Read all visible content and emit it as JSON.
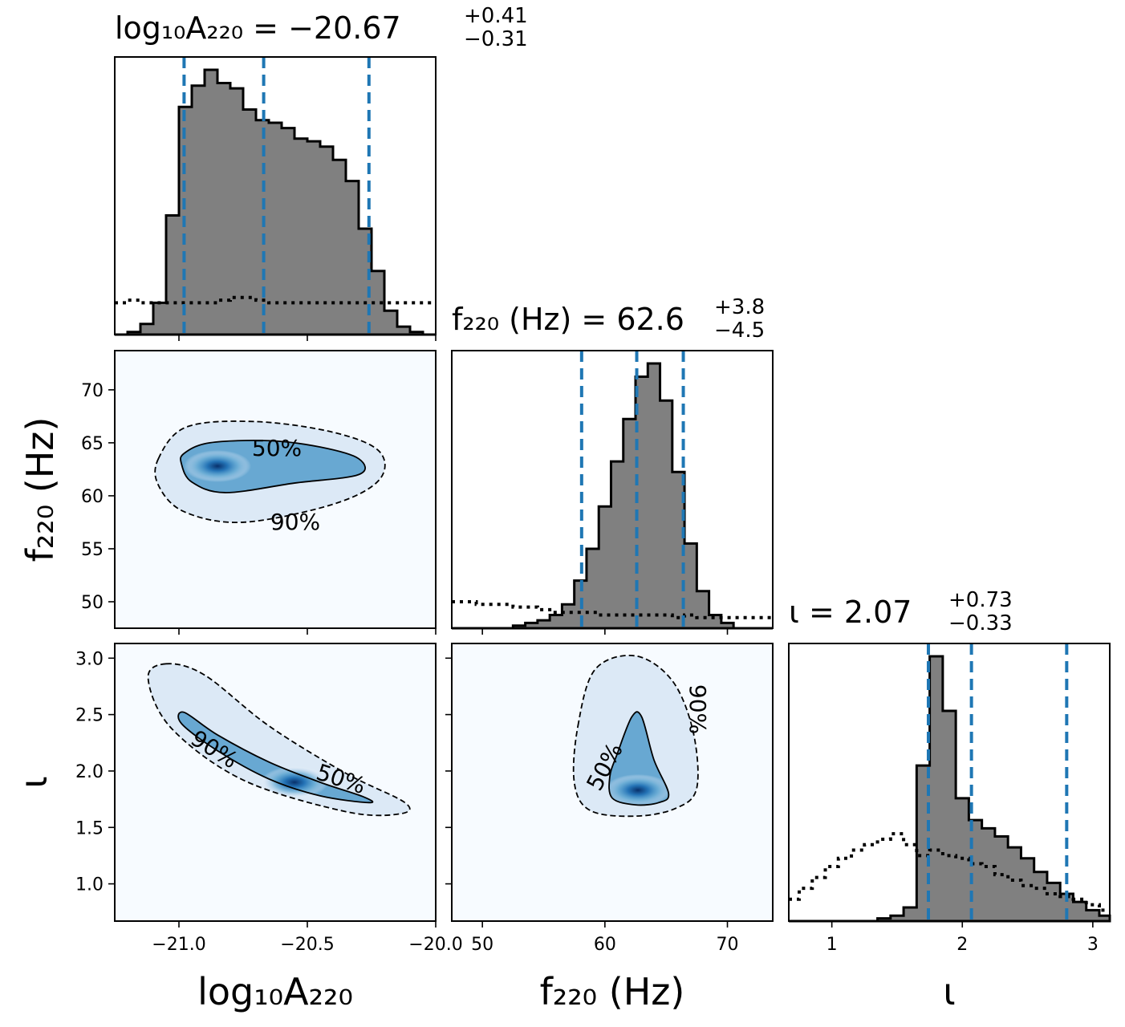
{
  "chart_data": [
    {
      "type": "histogram",
      "panel": "log10A220-marginal",
      "title": {
        "main": "log₁₀A₂₂₀ = −20.67",
        "plus": "+0.41",
        "minus": "−0.31"
      },
      "xlim": [
        -21.25,
        -20.0
      ],
      "quantiles": [
        -20.98,
        -20.67,
        -20.26
      ],
      "bin_edges": [
        -21.25,
        -21.2,
        -21.15,
        -21.1,
        -21.05,
        -21.0,
        -20.95,
        -20.9,
        -20.85,
        -20.8,
        -20.75,
        -20.7,
        -20.65,
        -20.6,
        -20.55,
        -20.5,
        -20.45,
        -20.4,
        -20.35,
        -20.3,
        -20.25,
        -20.2,
        -20.15,
        -20.1,
        -20.05,
        -20.0
      ],
      "posterior_density": [
        0.0,
        0.01,
        0.04,
        0.12,
        0.45,
        0.86,
        0.94,
        1.0,
        0.95,
        0.93,
        0.85,
        0.81,
        0.8,
        0.78,
        0.74,
        0.73,
        0.71,
        0.66,
        0.58,
        0.4,
        0.24,
        0.09,
        0.03,
        0.01,
        0.0
      ],
      "prior_density_dotted": [
        0.12,
        0.13,
        0.12,
        0.12,
        0.12,
        0.12,
        0.12,
        0.12,
        0.13,
        0.14,
        0.14,
        0.13,
        0.12,
        0.12,
        0.12,
        0.12,
        0.12,
        0.12,
        0.12,
        0.12,
        0.12,
        0.12,
        0.12,
        0.12,
        0.12
      ],
      "color": "#808080",
      "quantile_color": "#1f77b4"
    },
    {
      "type": "histogram",
      "panel": "f220-marginal",
      "title": {
        "main": "f₂₂₀ (Hz) = 62.6",
        "plus": "+3.8",
        "minus": "−4.5"
      },
      "xlim": [
        47.5,
        73.7
      ],
      "quantiles": [
        58.1,
        62.6,
        66.4
      ],
      "bin_edges": [
        47.5,
        48.5,
        49.5,
        50.5,
        51.5,
        52.5,
        53.5,
        54.5,
        55.5,
        56.5,
        57.5,
        58.5,
        59.5,
        60.5,
        61.5,
        62.5,
        63.5,
        64.5,
        65.5,
        66.5,
        67.5,
        68.5,
        69.5,
        70.5,
        71.5,
        72.5,
        73.7
      ],
      "posterior_density": [
        0.0,
        0.0,
        0.0,
        0.0,
        0.0,
        0.01,
        0.02,
        0.03,
        0.05,
        0.09,
        0.18,
        0.3,
        0.46,
        0.63,
        0.79,
        0.95,
        1.0,
        0.86,
        0.59,
        0.32,
        0.14,
        0.05,
        0.02,
        0.0,
        0.0,
        0.0
      ],
      "prior_density_dotted": [
        0.1,
        0.1,
        0.09,
        0.09,
        0.09,
        0.08,
        0.08,
        0.07,
        0.06,
        0.06,
        0.06,
        0.06,
        0.05,
        0.05,
        0.05,
        0.05,
        0.05,
        0.05,
        0.04,
        0.05,
        0.04,
        0.04,
        0.04,
        0.04,
        0.04,
        0.04
      ],
      "color": "#808080",
      "quantile_color": "#1f77b4"
    },
    {
      "type": "histogram",
      "panel": "iota-marginal",
      "title": {
        "main": "ι = 2.07",
        "plus": "+0.73",
        "minus": "−0.33"
      },
      "xlim": [
        0.67,
        3.13
      ],
      "quantiles": [
        1.74,
        2.07,
        2.8
      ],
      "bin_edges": [
        0.67,
        0.75,
        0.85,
        0.95,
        1.05,
        1.15,
        1.25,
        1.35,
        1.45,
        1.55,
        1.65,
        1.75,
        1.85,
        1.95,
        2.05,
        2.15,
        2.25,
        2.35,
        2.45,
        2.55,
        2.65,
        2.75,
        2.85,
        2.95,
        3.05,
        3.13
      ],
      "posterior_density": [
        0.0,
        0.0,
        0.0,
        0.0,
        0.0,
        0.0,
        0.0,
        0.01,
        0.02,
        0.05,
        0.57,
        0.97,
        0.77,
        0.45,
        0.37,
        0.34,
        0.31,
        0.27,
        0.23,
        0.18,
        0.14,
        0.1,
        0.07,
        0.04,
        0.02
      ],
      "prior_density_dotted": [
        0.08,
        0.12,
        0.16,
        0.2,
        0.23,
        0.26,
        0.28,
        0.3,
        0.32,
        0.28,
        0.24,
        0.26,
        0.24,
        0.23,
        0.21,
        0.2,
        0.17,
        0.15,
        0.13,
        0.12,
        0.1,
        0.09,
        0.08,
        0.06,
        0.04
      ],
      "color": "#808080",
      "quantile_color": "#1f77b4"
    },
    {
      "type": "heatmap",
      "panel": "log10A220-vs-f220",
      "xlim": [
        -21.25,
        -20.0
      ],
      "ylim": [
        47.5,
        73.7
      ],
      "density_peak": {
        "x": -20.85,
        "y": 62.8
      },
      "contour_labels": [
        "50%",
        "90%"
      ],
      "contour_50": [
        [
          -20.98,
          64.0
        ],
        [
          -20.88,
          65.0
        ],
        [
          -20.65,
          65.2
        ],
        [
          -20.45,
          64.6
        ],
        [
          -20.3,
          63.5
        ],
        [
          -20.3,
          62.0
        ],
        [
          -20.55,
          61.2
        ],
        [
          -20.82,
          60.3
        ],
        [
          -20.95,
          61.3
        ],
        [
          -20.99,
          63.0
        ]
      ],
      "contour_90": [
        [
          -21.08,
          63.5
        ],
        [
          -20.97,
          66.5
        ],
        [
          -20.7,
          67.0
        ],
        [
          -20.4,
          66.0
        ],
        [
          -20.22,
          64.2
        ],
        [
          -20.22,
          61.5
        ],
        [
          -20.4,
          59.2
        ],
        [
          -20.75,
          57.5
        ],
        [
          -20.98,
          58.5
        ],
        [
          -21.08,
          61.0
        ]
      ],
      "colormap": [
        "#f7fbff",
        "#c6dbef",
        "#6baed6",
        "#2171b5",
        "#08306b"
      ]
    },
    {
      "type": "heatmap",
      "panel": "log10A220-vs-iota",
      "xlim": [
        -21.25,
        -20.0
      ],
      "ylim": [
        0.67,
        3.13
      ],
      "density_peak": {
        "x": -20.55,
        "y": 1.9
      },
      "contour_labels": [
        "90%",
        "50%"
      ],
      "contour_50": [
        [
          -20.98,
          2.52
        ],
        [
          -20.85,
          2.32
        ],
        [
          -20.65,
          2.08
        ],
        [
          -20.45,
          1.9
        ],
        [
          -20.28,
          1.77
        ],
        [
          -20.26,
          1.72
        ],
        [
          -20.45,
          1.78
        ],
        [
          -20.65,
          1.93
        ],
        [
          -20.85,
          2.18
        ],
        [
          -20.99,
          2.42
        ]
      ],
      "contour_90": [
        [
          -21.05,
          2.95
        ],
        [
          -20.9,
          2.85
        ],
        [
          -20.65,
          2.4
        ],
        [
          -20.35,
          1.98
        ],
        [
          -20.12,
          1.72
        ],
        [
          -20.14,
          1.62
        ],
        [
          -20.35,
          1.64
        ],
        [
          -20.75,
          1.92
        ],
        [
          -21.03,
          2.38
        ],
        [
          -21.12,
          2.82
        ]
      ],
      "colormap": [
        "#f7fbff",
        "#c6dbef",
        "#6baed6",
        "#2171b5",
        "#08306b"
      ]
    },
    {
      "type": "heatmap",
      "panel": "f220-vs-iota",
      "xlim": [
        47.5,
        73.7
      ],
      "ylim": [
        0.67,
        3.13
      ],
      "density_peak": {
        "x": 62.7,
        "y": 1.83
      },
      "contour_labels": [
        "50%",
        "90%"
      ],
      "contour_50": [
        [
          61.0,
          2.15
        ],
        [
          62.2,
          2.48
        ],
        [
          63.0,
          2.48
        ],
        [
          64.0,
          2.1
        ],
        [
          65.2,
          1.8
        ],
        [
          64.4,
          1.72
        ],
        [
          62.5,
          1.7
        ],
        [
          60.6,
          1.76
        ],
        [
          60.4,
          1.95
        ]
      ],
      "contour_90": [
        [
          57.8,
          2.4
        ],
        [
          59.2,
          2.9
        ],
        [
          62.5,
          3.02
        ],
        [
          65.5,
          2.8
        ],
        [
          67.2,
          2.35
        ],
        [
          67.5,
          1.85
        ],
        [
          65.8,
          1.67
        ],
        [
          62.5,
          1.6
        ],
        [
          58.8,
          1.65
        ],
        [
          57.5,
          1.9
        ]
      ],
      "colormap": [
        "#f7fbff",
        "#c6dbef",
        "#6baed6",
        "#2171b5",
        "#08306b"
      ]
    }
  ],
  "axes": {
    "x_labels": {
      "A": "log₁₀A₂₂₀",
      "F": "f₂₂₀ (Hz)",
      "I": "ι"
    },
    "y_labels": {
      "F": "f₂₂₀ (Hz)",
      "I": "ι"
    },
    "ticks": {
      "A": [
        {
          "v": -21.0,
          "label": "−21.0"
        },
        {
          "v": -20.5,
          "label": "−20.5"
        },
        {
          "v": -20.0,
          "label": "−20.0"
        }
      ],
      "F": [
        {
          "v": 50,
          "label": "50"
        },
        {
          "v": 55,
          "label": "55"
        },
        {
          "v": 60,
          "label": "60"
        },
        {
          "v": 65,
          "label": "65"
        },
        {
          "v": 70,
          "label": "70"
        }
      ],
      "F_x": [
        {
          "v": 50,
          "label": "50"
        },
        {
          "v": 60,
          "label": "60"
        },
        {
          "v": 70,
          "label": "70"
        }
      ],
      "I_y": [
        {
          "v": 1.0,
          "label": "1.0"
        },
        {
          "v": 1.5,
          "label": "1.5"
        },
        {
          "v": 2.0,
          "label": "2.0"
        },
        {
          "v": 2.5,
          "label": "2.5"
        },
        {
          "v": 3.0,
          "label": "3.0"
        }
      ],
      "I_x": [
        {
          "v": 1,
          "label": "1"
        },
        {
          "v": 2,
          "label": "2"
        },
        {
          "v": 3,
          "label": "3"
        }
      ]
    }
  }
}
